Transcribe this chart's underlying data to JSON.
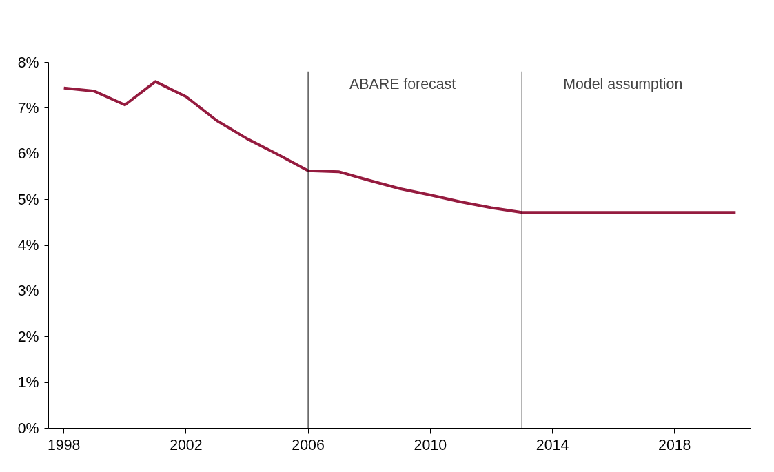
{
  "chart_data": {
    "type": "line",
    "x": [
      1998,
      1999,
      2000,
      2001,
      2002,
      2003,
      2004,
      2005,
      2006,
      2007,
      2008,
      2009,
      2010,
      2011,
      2012,
      2013,
      2014,
      2015,
      2016,
      2017,
      2018,
      2019,
      2020
    ],
    "series": [
      {
        "color": "#951b3f",
        "values": [
          7.44,
          7.37,
          7.07,
          7.58,
          7.25,
          6.73,
          6.33,
          5.99,
          5.63,
          5.61,
          5.42,
          5.24,
          5.1,
          4.95,
          4.82,
          4.72,
          4.72,
          4.72,
          4.72,
          4.72,
          4.72,
          4.72,
          4.72
        ]
      }
    ],
    "xlim": [
      1997.5,
      2020.5
    ],
    "xticks": [
      1998,
      2002,
      2006,
      2010,
      2014,
      2018
    ],
    "ylim": [
      0,
      8
    ],
    "yticks": [
      {
        "value": 0,
        "label": "0%"
      },
      {
        "value": 1,
        "label": "1%"
      },
      {
        "value": 2,
        "label": "2%"
      },
      {
        "value": 3,
        "label": "3%"
      },
      {
        "value": 4,
        "label": "4%"
      },
      {
        "value": 5,
        "label": "5%"
      },
      {
        "value": 6,
        "label": "6%"
      },
      {
        "value": 7,
        "label": "7%"
      },
      {
        "value": 8,
        "label": "8%"
      }
    ],
    "ref_lines": [
      {
        "axis": "x",
        "value": 2006,
        "label": "ABARE forecast",
        "color": "#000000"
      },
      {
        "axis": "x",
        "value": 2013,
        "label": "Model assumption",
        "color": "#000000"
      }
    ],
    "grid": false,
    "marker": "none",
    "line_style": "solid"
  }
}
